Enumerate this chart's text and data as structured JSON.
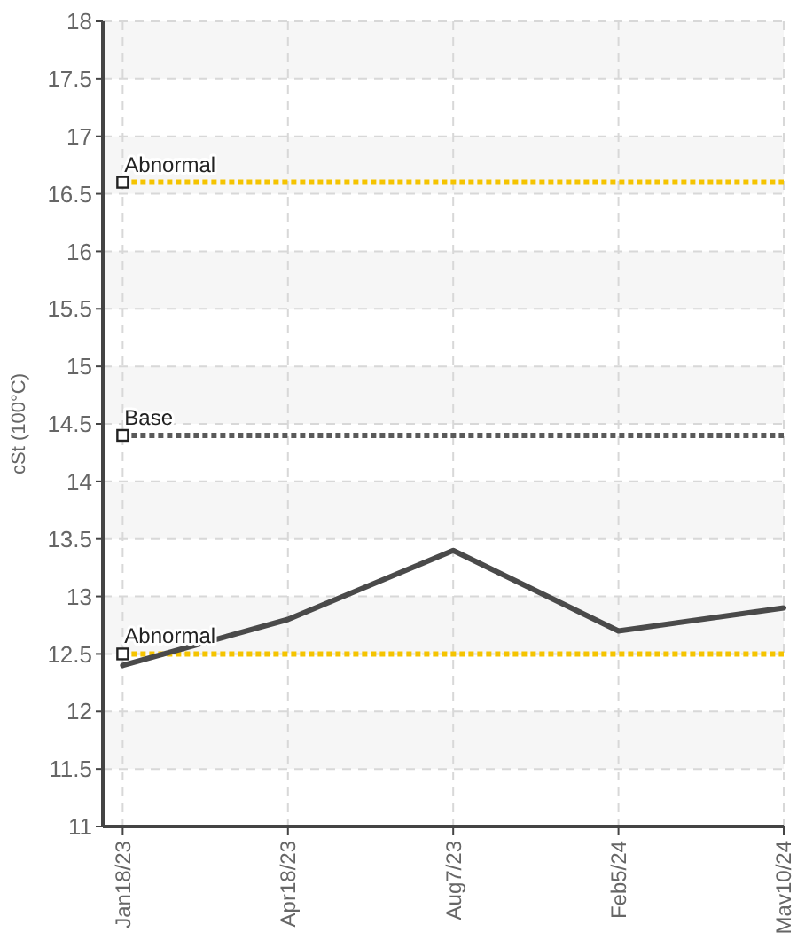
{
  "chart_data": {
    "type": "line",
    "ylabel": "cSt (100°C)",
    "categories": [
      "Jan18/23",
      "Apr18/23",
      "Aug7/23",
      "Feb5/24",
      "Mav10/24"
    ],
    "series": [
      {
        "color": "#4a4a4a",
        "values": [
          12.4,
          12.8,
          13.4,
          12.7,
          12.9
        ]
      }
    ],
    "ylim": [
      11,
      18
    ],
    "yticks": [
      11,
      11.5,
      12,
      12.5,
      13,
      13.5,
      14,
      14.5,
      15,
      15.5,
      16,
      16.5,
      17,
      17.5,
      18
    ],
    "ref_lines": [
      {
        "axis": "y",
        "value": 16.6,
        "label": "Abnormal",
        "color": "#f5c400",
        "line_style": "dotted"
      },
      {
        "axis": "y",
        "value": 14.4,
        "label": "Base",
        "color": "#5a5a5a",
        "line_style": "dotted"
      },
      {
        "axis": "y",
        "value": 12.5,
        "label": "Abnormal",
        "color": "#f5c400",
        "line_style": "dotted"
      }
    ],
    "grid": true,
    "marker": "none",
    "line_style": "solid"
  }
}
